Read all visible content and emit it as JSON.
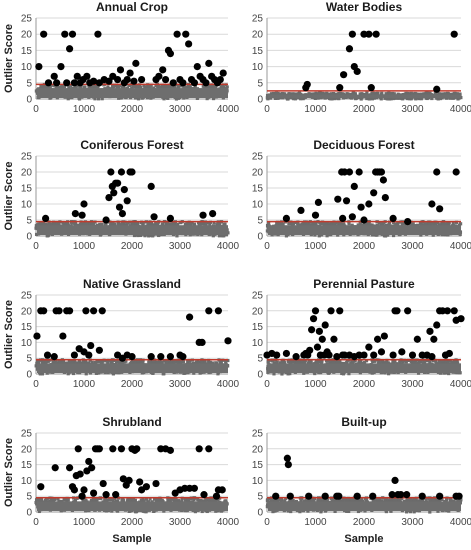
{
  "chart_data": [
    {
      "type": "scatter",
      "title": "Annual Crop",
      "ylabel": "Outlier Score",
      "xlabel": "",
      "xlim": [
        0,
        4000
      ],
      "ylim": [
        0,
        25
      ],
      "xticks": [
        0,
        1000,
        2000,
        3000,
        4000
      ],
      "yticks": [
        0,
        5,
        10,
        15,
        20,
        25
      ],
      "threshold": 4.5,
      "noise_max": 4.5,
      "series": [
        {
          "x": [
            60,
            160,
            260,
            380,
            430,
            520,
            600,
            640,
            700,
            760,
            800,
            860,
            920,
            980,
            1060,
            1120,
            1200,
            1290,
            1320,
            1420,
            1520,
            1600,
            1700,
            1760,
            1840,
            1900,
            1960,
            2040,
            2080,
            2200,
            2500,
            2560,
            2640,
            2700,
            2760,
            2800,
            2860,
            2940,
            3000,
            3060,
            3120,
            3180,
            3240,
            3300,
            3360,
            3420,
            3480,
            3540,
            3600,
            3660,
            3720,
            3780,
            3840,
            3900
          ],
          "y": [
            10,
            20,
            5,
            7,
            5,
            10,
            20,
            5,
            15.5,
            20,
            5,
            7,
            5,
            6,
            7,
            5,
            5.5,
            20,
            5,
            6,
            5.5,
            7,
            6,
            9,
            5,
            6,
            8,
            5.5,
            11,
            6,
            6,
            7,
            9,
            6,
            15,
            14,
            5,
            20,
            6,
            5,
            20,
            17,
            6,
            5,
            10,
            7,
            6,
            5,
            11,
            7,
            6,
            5,
            6,
            8
          ]
        }
      ]
    },
    {
      "type": "scatter",
      "title": "Water Bodies",
      "ylabel": "",
      "xlabel": "",
      "xlim": [
        0,
        4000
      ],
      "ylim": [
        0,
        25
      ],
      "xticks": [
        0,
        1000,
        2000,
        3000,
        4000
      ],
      "yticks": [
        0,
        5,
        10,
        15,
        20,
        25
      ],
      "threshold": 2.5,
      "noise_max": 1.8,
      "series": [
        {
          "x": [
            800,
            830,
            1500,
            1580,
            1700,
            1760,
            1800,
            1860,
            2000,
            2100,
            2150,
            2250,
            3500,
            3860
          ],
          "y": [
            3.5,
            4.5,
            3.5,
            7.5,
            15.5,
            20,
            10,
            8.5,
            20,
            20,
            3.5,
            20,
            3,
            20
          ]
        }
      ]
    },
    {
      "type": "scatter",
      "title": "Coniferous Forest",
      "ylabel": "Outlier Score",
      "xlabel": "",
      "xlim": [
        0,
        4000
      ],
      "ylim": [
        0,
        25
      ],
      "xticks": [
        0,
        1000,
        2000,
        3000,
        4000
      ],
      "yticks": [
        0,
        5,
        10,
        15,
        20,
        25
      ],
      "threshold": 4.5,
      "noise_max": 4.5,
      "series": [
        {
          "x": [
            200,
            820,
            960,
            1000,
            1460,
            1520,
            1560,
            1590,
            1620,
            1660,
            1700,
            1740,
            1780,
            1800,
            1840,
            1900,
            1960,
            2000,
            2400,
            2460,
            2800,
            3480,
            3680
          ],
          "y": [
            5.5,
            7,
            6.5,
            10,
            5,
            12,
            20,
            15.5,
            13.5,
            16.5,
            16.5,
            9,
            20,
            7,
            14.5,
            11,
            20,
            20,
            15.5,
            6,
            5.5,
            6.5,
            7
          ]
        }
      ]
    },
    {
      "type": "scatter",
      "title": "Deciduous Forest",
      "ylabel": "",
      "xlabel": "",
      "xlim": [
        0,
        4000
      ],
      "ylim": [
        0,
        25
      ],
      "xticks": [
        0,
        1000,
        2000,
        3000,
        4000
      ],
      "yticks": [
        0,
        5,
        10,
        15,
        20,
        25
      ],
      "threshold": 4.5,
      "noise_max": 4.5,
      "series": [
        {
          "x": [
            400,
            700,
            1000,
            1060,
            1460,
            1540,
            1560,
            1600,
            1640,
            1700,
            1760,
            1800,
            1900,
            1940,
            2000,
            2100,
            2200,
            2240,
            2280,
            2320,
            2360,
            2400,
            2440,
            2600,
            2900,
            3400,
            3500,
            3560,
            3900
          ],
          "y": [
            5.5,
            8,
            6.5,
            10.5,
            11.5,
            20,
            5.5,
            20,
            11,
            20,
            6,
            15.5,
            20,
            9,
            5,
            10,
            13.5,
            20,
            20,
            20,
            20,
            17.5,
            12,
            5.5,
            4.5,
            10,
            20,
            8.5,
            20
          ]
        }
      ]
    },
    {
      "type": "scatter",
      "title": "Native Grassland",
      "ylabel": "Outlier Score",
      "xlabel": "",
      "xlim": [
        0,
        4000
      ],
      "ylim": [
        0,
        25
      ],
      "xticks": [
        0,
        1000,
        2000,
        3000,
        4000
      ],
      "yticks": [
        0,
        5,
        10,
        15,
        20,
        25
      ],
      "threshold": 4.5,
      "noise_max": 4.5,
      "series": [
        {
          "x": [
            20,
            100,
            160,
            240,
            380,
            420,
            480,
            560,
            640,
            700,
            800,
            900,
            1000,
            1040,
            1100,
            1140,
            1200,
            1320,
            1380,
            1700,
            1800,
            1900,
            2000,
            2400,
            2600,
            2800,
            3000,
            3060,
            3200,
            3400,
            3460,
            3600,
            3800,
            4000
          ],
          "y": [
            12,
            20,
            20,
            6,
            5.5,
            20,
            20,
            12,
            20,
            20,
            6,
            8,
            7,
            20,
            6,
            9,
            20,
            7.5,
            20,
            6,
            5,
            6,
            5.5,
            5.5,
            5.5,
            5.5,
            6,
            5.5,
            18,
            10,
            10,
            20,
            20,
            10.5
          ]
        }
      ]
    },
    {
      "type": "scatter",
      "title": "Perennial Pasture",
      "ylabel": "",
      "xlabel": "",
      "xlim": [
        0,
        4000
      ],
      "ylim": [
        0,
        25
      ],
      "xticks": [
        0,
        1000,
        2000,
        3000,
        4000
      ],
      "yticks": [
        0,
        5,
        10,
        15,
        20,
        25
      ],
      "threshold": 4.5,
      "noise_max": 4.5,
      "series": [
        {
          "x": [
            0,
            100,
            200,
            400,
            600,
            760,
            800,
            840,
            880,
            920,
            960,
            1000,
            1040,
            1080,
            1100,
            1140,
            1180,
            1200,
            1240,
            1280,
            1320,
            1380,
            1440,
            1500,
            1560,
            1600,
            1700,
            1800,
            1900,
            2000,
            2100,
            2200,
            2280,
            2360,
            2420,
            2600,
            2640,
            2680,
            2780,
            2900,
            3000,
            3100,
            3200,
            3300,
            3360,
            3400,
            3440,
            3500,
            3560,
            3620,
            3680,
            3720,
            3760,
            3860,
            3900,
            4000
          ],
          "y": [
            6,
            6.5,
            6,
            6.5,
            5.5,
            6,
            6.5,
            6,
            7.5,
            14,
            17.5,
            20,
            8.5,
            13.5,
            6,
            11,
            6,
            15.5,
            7,
            6,
            20,
            11,
            5.5,
            20,
            6,
            6,
            6,
            5.5,
            6,
            6,
            8.5,
            6,
            11,
            7,
            12,
            6,
            20,
            20,
            7,
            20,
            6,
            11,
            6,
            6,
            13.5,
            5.5,
            11,
            15.5,
            20,
            20,
            6,
            20,
            6.5,
            20,
            17,
            17.5
          ]
        }
      ]
    },
    {
      "type": "scatter",
      "title": "Shrubland",
      "ylabel": "Outlier Score",
      "xlabel": "Sample",
      "xlim": [
        0,
        4000
      ],
      "ylim": [
        0,
        25
      ],
      "xticks": [
        0,
        1000,
        2000,
        3000,
        4000
      ],
      "yticks": [
        0,
        5,
        10,
        15,
        20,
        25
      ],
      "threshold": 4.5,
      "noise_max": 4.5,
      "series": [
        {
          "x": [
            100,
            400,
            700,
            760,
            800,
            840,
            880,
            920,
            960,
            1000,
            1060,
            1100,
            1160,
            1200,
            1240,
            1280,
            1320,
            1400,
            1460,
            1600,
            1660,
            1780,
            1820,
            1880,
            1940,
            2000,
            2060,
            2100,
            2160,
            2200,
            2300,
            2500,
            2600,
            2700,
            2800,
            2900,
            3000,
            3100,
            3200,
            3300,
            3400,
            3500,
            3600,
            3760,
            3800,
            3880
          ],
          "y": [
            8,
            14,
            14,
            8,
            7,
            11.5,
            20,
            12,
            5,
            7,
            13,
            16,
            14,
            6,
            20,
            20,
            20,
            9,
            5.5,
            20,
            5.5,
            20,
            10.5,
            8.5,
            10,
            20,
            19.5,
            20,
            9.5,
            7,
            8,
            9,
            20,
            20,
            19.5,
            6,
            7,
            7.5,
            7.5,
            7.5,
            20,
            5.5,
            20,
            5,
            7,
            7
          ]
        }
      ]
    },
    {
      "type": "scatter",
      "title": "Built-up",
      "ylabel": "",
      "xlabel": "Sample",
      "xlim": [
        0,
        4000
      ],
      "ylim": [
        0,
        25
      ],
      "xticks": [
        0,
        1000,
        2000,
        3000,
        4000
      ],
      "yticks": [
        0,
        5,
        10,
        15,
        20,
        25
      ],
      "threshold": 4.5,
      "noise_max": 4.5,
      "series": [
        {
          "x": [
            180,
            420,
            440,
            480,
            860,
            1200,
            1440,
            1480,
            1860,
            2180,
            2580,
            2640,
            2700,
            2760,
            2880,
            3200,
            3560,
            3900,
            3960
          ],
          "y": [
            5,
            17,
            15,
            5,
            5,
            5,
            5,
            5,
            5,
            5,
            5.5,
            10,
            5.5,
            5.5,
            5.5,
            5,
            5,
            5,
            5
          ]
        }
      ]
    }
  ]
}
